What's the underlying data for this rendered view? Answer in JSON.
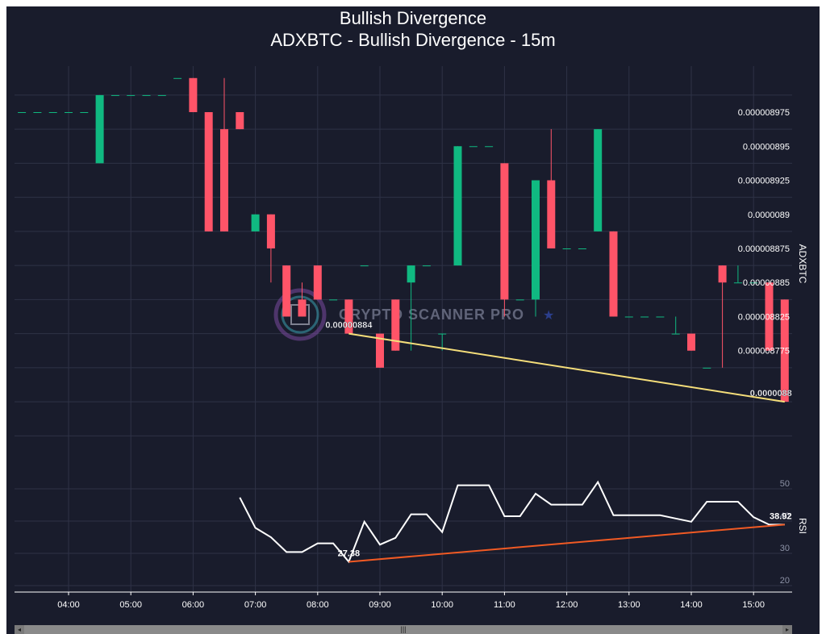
{
  "title": "Bullish Divergence",
  "subtitle": "ADXBTC - Bullish Divergence - 15m",
  "watermark": "CRYPTO SCANNER PRO",
  "colors": {
    "background": "#191c2c",
    "grid": "#2e3246",
    "up": "#10b981",
    "down": "#ff5468",
    "price_divergence": "#f5de7a",
    "rsi_line": "#ffffff",
    "rsi_divergence": "#f15a24",
    "text": "#ffffff",
    "axis_text": "#c8c8c8"
  },
  "scrollbar": {
    "left_icon": "◂",
    "right_icon": "▸",
    "grip_icon": "|||"
  },
  "chart_data": [
    {
      "type": "candlestick",
      "ylabel": "ADXBTC",
      "ylim": [
        8.765e-06,
        8.997e-06
      ],
      "y_ticks": [
        "0.000008975",
        "0.00000895",
        "0.000008925",
        "0.0000089",
        "0.000008875",
        "0.00000885",
        "0.000008825",
        "0.000008775"
      ],
      "x_ticks": [
        "04:00",
        "05:00",
        "06:00",
        "07:00",
        "08:00",
        "09:00",
        "10:00",
        "11:00",
        "12:00",
        "13:00",
        "14:00",
        "15:00"
      ],
      "candles": [
        {
          "t": "03:15",
          "o": 8.97e-06,
          "h": 8.97e-06,
          "l": 8.97e-06,
          "c": 8.97e-06
        },
        {
          "t": "03:30",
          "o": 8.97e-06,
          "h": 8.97e-06,
          "l": 8.97e-06,
          "c": 8.97e-06
        },
        {
          "t": "03:45",
          "o": 8.97e-06,
          "h": 8.97e-06,
          "l": 8.97e-06,
          "c": 8.97e-06
        },
        {
          "t": "04:00",
          "o": 8.97e-06,
          "h": 8.97e-06,
          "l": 8.97e-06,
          "c": 8.97e-06
        },
        {
          "t": "04:15",
          "o": 8.97e-06,
          "h": 8.97e-06,
          "l": 8.97e-06,
          "c": 8.97e-06
        },
        {
          "t": "04:30",
          "o": 8.94e-06,
          "h": 8.98e-06,
          "l": 8.94e-06,
          "c": 8.98e-06
        },
        {
          "t": "04:45",
          "o": 8.98e-06,
          "h": 8.98e-06,
          "l": 8.98e-06,
          "c": 8.98e-06
        },
        {
          "t": "05:00",
          "o": 8.98e-06,
          "h": 8.98e-06,
          "l": 8.98e-06,
          "c": 8.98e-06
        },
        {
          "t": "05:15",
          "o": 8.98e-06,
          "h": 8.98e-06,
          "l": 8.98e-06,
          "c": 8.98e-06
        },
        {
          "t": "05:30",
          "o": 8.98e-06,
          "h": 8.98e-06,
          "l": 8.98e-06,
          "c": 8.98e-06
        },
        {
          "t": "05:45",
          "o": 8.99e-06,
          "h": 8.99e-06,
          "l": 8.99e-06,
          "c": 8.99e-06
        },
        {
          "t": "06:00",
          "o": 8.99e-06,
          "h": 8.99e-06,
          "l": 8.97e-06,
          "c": 8.97e-06
        },
        {
          "t": "06:15",
          "o": 8.97e-06,
          "h": 8.97e-06,
          "l": 8.9e-06,
          "c": 8.9e-06
        },
        {
          "t": "06:30",
          "o": 8.96e-06,
          "h": 8.99e-06,
          "l": 8.9e-06,
          "c": 8.9e-06
        },
        {
          "t": "06:45",
          "o": 8.97e-06,
          "h": 8.97e-06,
          "l": 8.96e-06,
          "c": 8.96e-06
        },
        {
          "t": "07:00",
          "o": 8.9e-06,
          "h": 8.91e-06,
          "l": 8.9e-06,
          "c": 8.91e-06
        },
        {
          "t": "07:15",
          "o": 8.91e-06,
          "h": 8.91e-06,
          "l": 8.87e-06,
          "c": 8.89e-06
        },
        {
          "t": "07:30",
          "o": 8.88e-06,
          "h": 8.88e-06,
          "l": 8.85e-06,
          "c": 8.85e-06
        },
        {
          "t": "07:45",
          "o": 8.86e-06,
          "h": 8.87e-06,
          "l": 8.85e-06,
          "c": 8.85e-06
        },
        {
          "t": "08:00",
          "o": 8.88e-06,
          "h": 8.88e-06,
          "l": 8.86e-06,
          "c": 8.86e-06
        },
        {
          "t": "08:15",
          "o": 8.86e-06,
          "h": 8.86e-06,
          "l": 8.86e-06,
          "c": 8.86e-06
        },
        {
          "t": "08:30",
          "o": 8.86e-06,
          "h": 8.86e-06,
          "l": 8.84e-06,
          "c": 8.84e-06
        },
        {
          "t": "08:45",
          "o": 8.88e-06,
          "h": 8.88e-06,
          "l": 8.88e-06,
          "c": 8.88e-06
        },
        {
          "t": "09:00",
          "o": 8.84e-06,
          "h": 8.84e-06,
          "l": 8.82e-06,
          "c": 8.82e-06
        },
        {
          "t": "09:15",
          "o": 8.86e-06,
          "h": 8.86e-06,
          "l": 8.83e-06,
          "c": 8.83e-06
        },
        {
          "t": "09:30",
          "o": 8.87e-06,
          "h": 8.88e-06,
          "l": 8.83e-06,
          "c": 8.88e-06
        },
        {
          "t": "09:45",
          "o": 8.88e-06,
          "h": 8.88e-06,
          "l": 8.88e-06,
          "c": 8.88e-06
        },
        {
          "t": "10:00",
          "o": 8.84e-06,
          "h": 8.84e-06,
          "l": 8.83e-06,
          "c": 8.84e-06
        },
        {
          "t": "10:15",
          "o": 8.88e-06,
          "h": 8.95e-06,
          "l": 8.88e-06,
          "c": 8.95e-06
        },
        {
          "t": "10:30",
          "o": 8.95e-06,
          "h": 8.95e-06,
          "l": 8.95e-06,
          "c": 8.95e-06
        },
        {
          "t": "10:45",
          "o": 8.95e-06,
          "h": 8.95e-06,
          "l": 8.95e-06,
          "c": 8.95e-06
        },
        {
          "t": "11:00",
          "o": 8.94e-06,
          "h": 8.94e-06,
          "l": 8.85e-06,
          "c": 8.86e-06
        },
        {
          "t": "11:15",
          "o": 8.86e-06,
          "h": 8.86e-06,
          "l": 8.86e-06,
          "c": 8.86e-06
        },
        {
          "t": "11:30",
          "o": 8.86e-06,
          "h": 8.93e-06,
          "l": 8.85e-06,
          "c": 8.93e-06
        },
        {
          "t": "11:45",
          "o": 8.93e-06,
          "h": 8.96e-06,
          "l": 8.89e-06,
          "c": 8.89e-06
        },
        {
          "t": "12:00",
          "o": 8.89e-06,
          "h": 8.89e-06,
          "l": 8.89e-06,
          "c": 8.89e-06
        },
        {
          "t": "12:15",
          "o": 8.89e-06,
          "h": 8.89e-06,
          "l": 8.89e-06,
          "c": 8.89e-06
        },
        {
          "t": "12:30",
          "o": 8.9e-06,
          "h": 8.96e-06,
          "l": 8.9e-06,
          "c": 8.96e-06
        },
        {
          "t": "12:45",
          "o": 8.9e-06,
          "h": 8.9e-06,
          "l": 8.85e-06,
          "c": 8.85e-06
        },
        {
          "t": "13:00",
          "o": 8.85e-06,
          "h": 8.85e-06,
          "l": 8.85e-06,
          "c": 8.85e-06
        },
        {
          "t": "13:15",
          "o": 8.85e-06,
          "h": 8.85e-06,
          "l": 8.85e-06,
          "c": 8.85e-06
        },
        {
          "t": "13:30",
          "o": 8.85e-06,
          "h": 8.85e-06,
          "l": 8.85e-06,
          "c": 8.85e-06
        },
        {
          "t": "13:45",
          "o": 8.84e-06,
          "h": 8.85e-06,
          "l": 8.84e-06,
          "c": 8.84e-06
        },
        {
          "t": "14:00",
          "o": 8.84e-06,
          "h": 8.84e-06,
          "l": 8.83e-06,
          "c": 8.83e-06
        },
        {
          "t": "14:15",
          "o": 8.82e-06,
          "h": 8.82e-06,
          "l": 8.82e-06,
          "c": 8.82e-06
        },
        {
          "t": "14:30",
          "o": 8.88e-06,
          "h": 8.88e-06,
          "l": 8.82e-06,
          "c": 8.87e-06
        },
        {
          "t": "14:45",
          "o": 8.87e-06,
          "h": 8.88e-06,
          "l": 8.87e-06,
          "c": 8.87e-06
        },
        {
          "t": "15:00",
          "o": 8.87e-06,
          "h": 8.87e-06,
          "l": 8.87e-06,
          "c": 8.87e-06
        },
        {
          "t": "15:15",
          "o": 8.87e-06,
          "h": 8.87e-06,
          "l": 8.83e-06,
          "c": 8.83e-06
        },
        {
          "t": "15:30",
          "o": 8.86e-06,
          "h": 8.86e-06,
          "l": 8.8e-06,
          "c": 8.8e-06
        }
      ],
      "divergence_line": {
        "from": {
          "t": "08:30",
          "v": 8.84e-06
        },
        "to": {
          "t": "15:30",
          "v": 8.8e-06
        }
      },
      "annotations": [
        {
          "t": "08:30",
          "v": 8.84e-06,
          "text": "0.00000884"
        },
        {
          "t": "15:30",
          "v": 8.8e-06,
          "text": "0.0000088"
        }
      ]
    },
    {
      "type": "line",
      "ylabel": "RSI",
      "ylim": [
        18,
        56
      ],
      "y_ticks": [
        20,
        30,
        40,
        50
      ],
      "series": [
        {
          "t": [
            "06:45",
            "07:00",
            "07:15",
            "07:30",
            "07:45",
            "08:00",
            "08:15",
            "08:30",
            "08:45",
            "09:00",
            "09:15",
            "09:30",
            "09:45",
            "10:00",
            "10:15",
            "10:30",
            "10:45",
            "11:00",
            "11:15",
            "11:30",
            "11:45",
            "12:00",
            "12:15",
            "12:30",
            "12:45",
            "13:00",
            "13:15",
            "13:30",
            "13:45",
            "14:00",
            "14:15",
            "14:30",
            "14:45",
            "15:00",
            "15:15",
            "15:30"
          ],
          "values": [
            47.3,
            37.9,
            35.0,
            30.4,
            30.4,
            33.1,
            33.1,
            27.4,
            39.8,
            32.7,
            34.8,
            42.1,
            42.1,
            36.6,
            51.1,
            51.1,
            51.1,
            41.5,
            41.5,
            48.5,
            45.1,
            45.1,
            45.1,
            52.1,
            41.8,
            41.8,
            41.8,
            41.8,
            40.8,
            39.8,
            46.0,
            46.0,
            46.0,
            41.2,
            38.9,
            38.9
          ]
        }
      ],
      "divergence_line": {
        "from": {
          "t": "08:30",
          "v": 27.38
        },
        "to": {
          "t": "15:30",
          "v": 38.92
        }
      },
      "annotations": [
        {
          "t": "08:30",
          "v": 27.38,
          "text": "27.38"
        },
        {
          "t": "15:30",
          "v": 38.92,
          "text": "38.92"
        }
      ]
    }
  ]
}
